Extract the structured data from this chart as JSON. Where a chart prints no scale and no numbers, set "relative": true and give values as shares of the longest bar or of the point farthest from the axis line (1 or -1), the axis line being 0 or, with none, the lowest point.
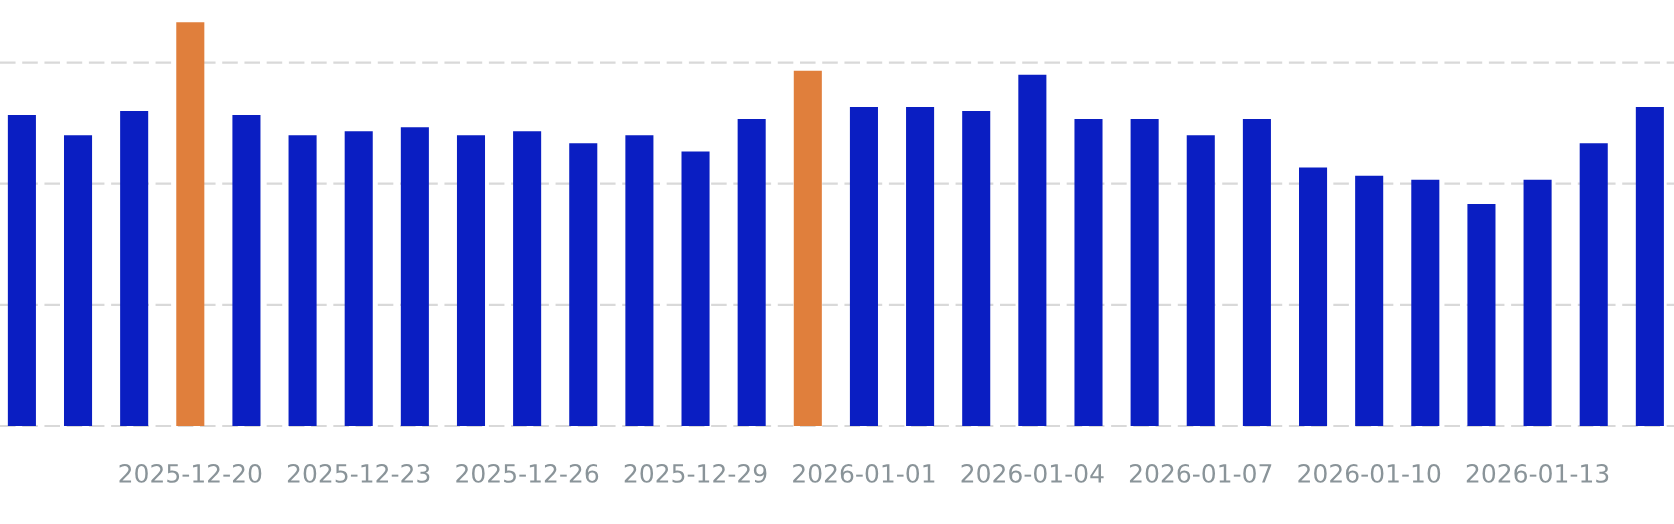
{
  "chart_data": {
    "type": "bar",
    "relative": true,
    "categories": [
      null,
      null,
      null,
      "2025-12-20",
      null,
      null,
      "2025-12-23",
      null,
      null,
      "2025-12-26",
      null,
      null,
      "2025-12-29",
      null,
      null,
      "2026-01-01",
      null,
      null,
      "2026-01-04",
      null,
      null,
      "2026-01-07",
      null,
      null,
      "2026-01-10",
      null,
      null,
      "2026-01-13",
      null,
      null
    ],
    "values": [
      0.77,
      0.72,
      0.78,
      1,
      0.77,
      0.72,
      0.73,
      0.74,
      0.72,
      0.73,
      0.7,
      0.72,
      0.68,
      0.76,
      0.88,
      0.79,
      0.79,
      0.78,
      0.87,
      0.76,
      0.76,
      0.72,
      0.76,
      0.64,
      0.62,
      0.61,
      0.55,
      0.61,
      0.7,
      0.79
    ],
    "colors": [
      "#0a1ec2",
      "#0a1ec2",
      "#0a1ec2",
      "#e07f3c",
      "#0a1ec2",
      "#0a1ec2",
      "#0a1ec2",
      "#0a1ec2",
      "#0a1ec2",
      "#0a1ec2",
      "#0a1ec2",
      "#0a1ec2",
      "#0a1ec2",
      "#0a1ec2",
      "#e07f3c",
      "#0a1ec2",
      "#0a1ec2",
      "#0a1ec2",
      "#0a1ec2",
      "#0a1ec2",
      "#0a1ec2",
      "#0a1ec2",
      "#0a1ec2",
      "#0a1ec2",
      "#0a1ec2",
      "#0a1ec2",
      "#0a1ec2",
      "#0a1ec2",
      "#0a1ec2",
      "#0a1ec2"
    ],
    "grid": "y",
    "tick_labels": "x"
  }
}
